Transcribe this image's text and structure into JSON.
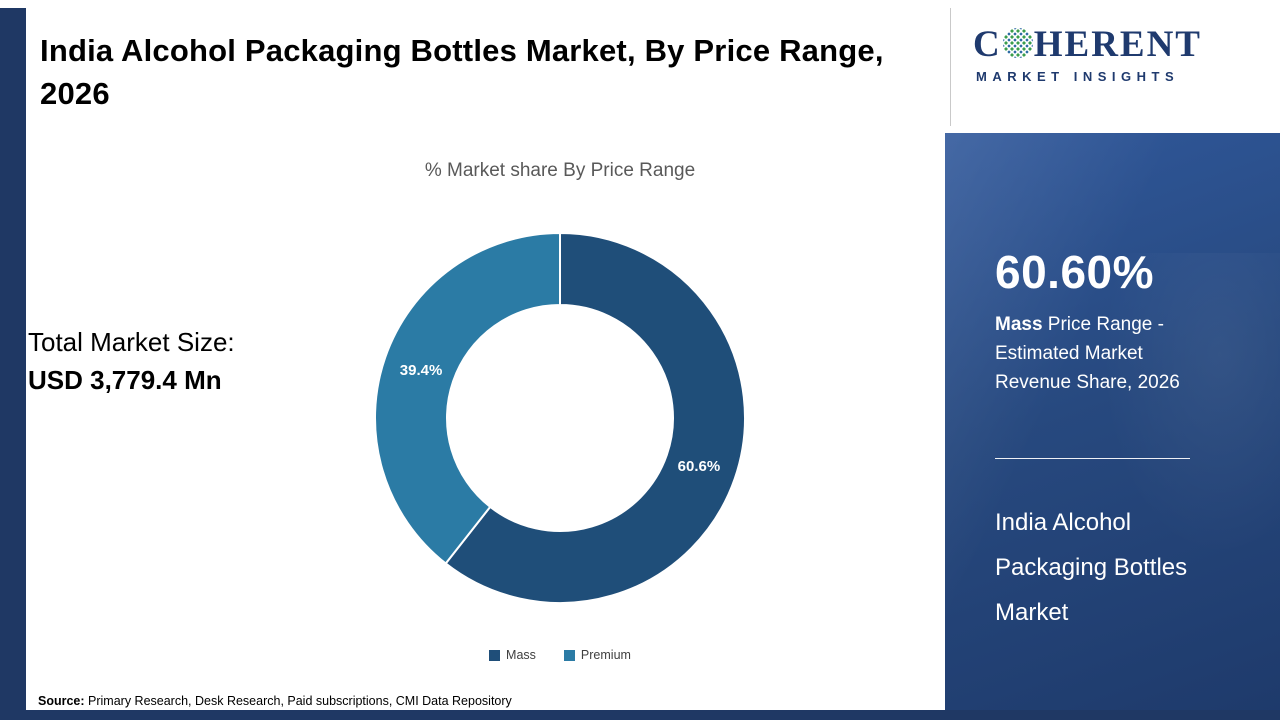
{
  "header": {
    "title": "India Alcohol Packaging Bottles Market, By Price Range, 2026"
  },
  "logo": {
    "prefix": "C",
    "suffix": "HERENT",
    "subtitle": "MARKET INSIGHTS",
    "globe_icon": "dotted-globe-icon",
    "brand_color": "#1F3A6E"
  },
  "chart_data": {
    "type": "pie",
    "donut": true,
    "title": "% Market share By Price Range",
    "categories": [
      "Mass",
      "Premium"
    ],
    "values": [
      60.6,
      39.4
    ],
    "labels": [
      "60.6%",
      "39.4%"
    ],
    "colors": [
      "#1F4E79",
      "#2B7BA5"
    ],
    "legend_position": "bottom",
    "start_angle_deg": 0,
    "direction": "clockwise"
  },
  "left_panel": {
    "total_label": "Total Market Size:",
    "total_value": "USD 3,779.4 Mn"
  },
  "sidebar": {
    "stat": "60.60%",
    "stat_desc_bold": "Mass",
    "stat_desc_rest": " Price Range - Estimated Market Revenue Share, 2026",
    "market_name": "India Alcohol Packaging Bottles Market",
    "panel_color": "#27497f"
  },
  "footer": {
    "source_label": "Source:",
    "source_text": " Primary Research, Desk Research, Paid subscriptions, CMI Data Repository"
  }
}
